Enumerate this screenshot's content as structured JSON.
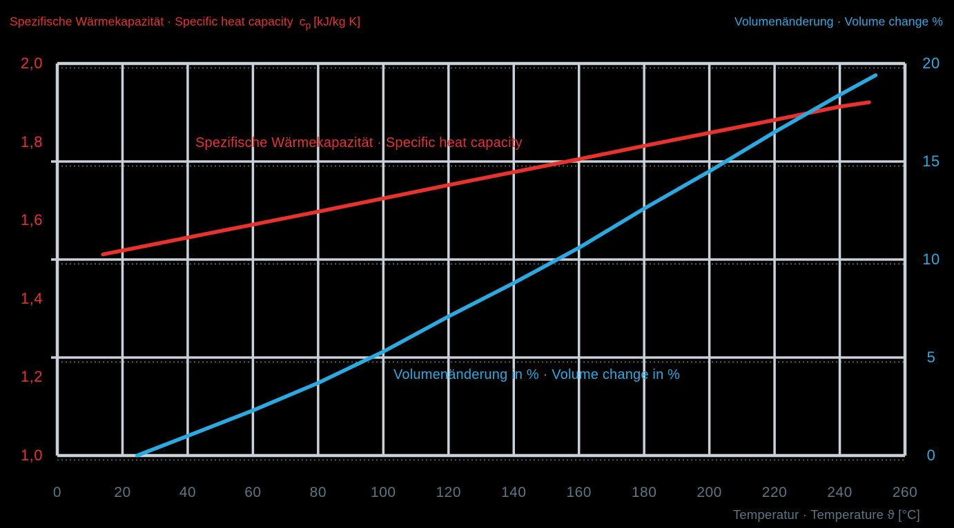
{
  "header": {
    "left_title": {
      "text": "Spezifische Wärmekapazität · Specific heat capacity",
      "symbol": "c",
      "symbol_sub": "p",
      "unit": "[kJ/kg K]"
    },
    "right_title": "Volumenänderung · Volume change %"
  },
  "colors": {
    "background": "#000000",
    "grid": "#c8d0d8",
    "heat_capacity_red": "#e9322d",
    "volume_change_cyan": "#29abe2",
    "x_axis_text": "#5a7683"
  },
  "chart_data": {
    "type": "line",
    "xlabel": "Temperatur · Temperature ϑ [°C]",
    "xlim": [
      0,
      260
    ],
    "x_ticks": [
      0,
      20,
      40,
      60,
      80,
      100,
      120,
      140,
      160,
      180,
      200,
      220,
      240,
      260
    ],
    "ylim_left": [
      1.0,
      2.0
    ],
    "y_left_tick_labels": [
      "2,0",
      "1,8",
      "1,6",
      "1,4",
      "1,2",
      "1,0"
    ],
    "y_left_tick_values": [
      2.0,
      1.8,
      1.6,
      1.4,
      1.2,
      1.0
    ],
    "ylim_right": [
      0,
      20
    ],
    "y_right_tick_labels": [
      "20",
      "15",
      "10",
      "5",
      "0"
    ],
    "y_right_tick_values": [
      20,
      15,
      10,
      5,
      0
    ],
    "grid": {
      "vertical_at_every_x_tick": true,
      "horizontal_at_right_axis_values": [
        20,
        15,
        10,
        5,
        0
      ],
      "legend": "in-plot text labels, no legend box"
    },
    "series": [
      {
        "name": "specific-heat-capacity",
        "label": "Spezifische Wärmekapazität · Specific heat capacity",
        "axis": "left",
        "unit": "kJ/kg K",
        "color": "#e9322d",
        "points": [
          [
            14,
            1.513
          ],
          [
            20,
            1.523
          ],
          [
            40,
            1.556
          ],
          [
            60,
            1.589
          ],
          [
            80,
            1.622
          ],
          [
            100,
            1.656
          ],
          [
            120,
            1.69
          ],
          [
            140,
            1.723
          ],
          [
            160,
            1.756
          ],
          [
            180,
            1.79
          ],
          [
            200,
            1.823
          ],
          [
            220,
            1.856
          ],
          [
            240,
            1.89
          ],
          [
            249,
            1.901
          ]
        ]
      },
      {
        "name": "volume-change",
        "label": "Volumenänderung in % · Volume change in %",
        "axis": "right",
        "unit": "%",
        "color": "#29abe2",
        "points": [
          [
            24.5,
            0
          ],
          [
            40,
            1.0
          ],
          [
            60,
            2.3
          ],
          [
            80,
            3.7
          ],
          [
            100,
            5.3
          ],
          [
            120,
            7.1
          ],
          [
            140,
            8.8
          ],
          [
            160,
            10.6
          ],
          [
            180,
            12.6
          ],
          [
            200,
            14.5
          ],
          [
            220,
            16.5
          ],
          [
            240,
            18.4
          ],
          [
            251,
            19.4
          ]
        ]
      }
    ]
  }
}
